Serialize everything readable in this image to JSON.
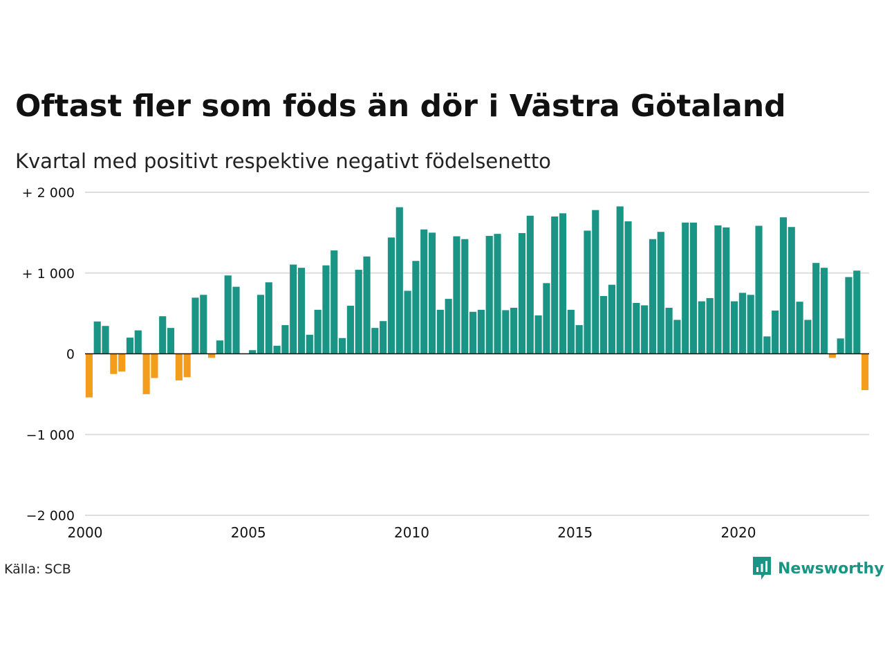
{
  "title": "Oftast fler som föds än dör i Västra Götaland",
  "subtitle": "Kvartal med positivt respektive negativt födelsenetto",
  "source": "Källa: SCB",
  "brand": {
    "name": "Newsworthy",
    "color": "#1a9484"
  },
  "colors": {
    "positive": "#1a9484",
    "negative": "#f49c1c",
    "grid": "#dddddd",
    "zero": "#111111"
  },
  "chart_data": {
    "type": "bar",
    "title": "Oftast fler som föds än dör i Västra Götaland",
    "subtitle": "Kvartal med positivt respektive negativt födelsenetto",
    "xlabel": "",
    "ylabel": "",
    "ylim": [
      -2000,
      2000
    ],
    "grid": true,
    "y_ticks": [
      {
        "value": 2000,
        "label": "+ 2 000"
      },
      {
        "value": 1000,
        "label": "+ 1 000"
      },
      {
        "value": 0,
        "label": "0"
      },
      {
        "value": -1000,
        "label": "−1 000"
      },
      {
        "value": -2000,
        "label": "−2 000"
      }
    ],
    "x_ticks": [
      {
        "value": 2000,
        "label": "2000"
      },
      {
        "value": 2005,
        "label": "2005"
      },
      {
        "value": 2010,
        "label": "2010"
      },
      {
        "value": 2015,
        "label": "2015"
      },
      {
        "value": 2020,
        "label": "2020"
      }
    ],
    "xlim": [
      2000,
      2024
    ],
    "categories": [
      "2000K1",
      "2000K2",
      "2000K3",
      "2000K4",
      "2001K1",
      "2001K2",
      "2001K3",
      "2001K4",
      "2002K1",
      "2002K2",
      "2002K3",
      "2002K4",
      "2003K1",
      "2003K2",
      "2003K3",
      "2003K4",
      "2004K1",
      "2004K2",
      "2004K3",
      "2004K4",
      "2005K1",
      "2005K2",
      "2005K3",
      "2005K4",
      "2006K1",
      "2006K2",
      "2006K3",
      "2006K4",
      "2007K1",
      "2007K2",
      "2007K3",
      "2007K4",
      "2008K1",
      "2008K2",
      "2008K3",
      "2008K4",
      "2009K1",
      "2009K2",
      "2009K3",
      "2009K4",
      "2010K1",
      "2010K2",
      "2010K3",
      "2010K4",
      "2011K1",
      "2011K2",
      "2011K3",
      "2011K4",
      "2012K1",
      "2012K2",
      "2012K3",
      "2012K4",
      "2013K1",
      "2013K2",
      "2013K3",
      "2013K4",
      "2014K1",
      "2014K2",
      "2014K3",
      "2014K4",
      "2015K1",
      "2015K2",
      "2015K3",
      "2015K4",
      "2016K1",
      "2016K2",
      "2016K3",
      "2016K4",
      "2017K1",
      "2017K2",
      "2017K3",
      "2017K4",
      "2018K1",
      "2018K2",
      "2018K3",
      "2018K4",
      "2019K1",
      "2019K2",
      "2019K3",
      "2019K4",
      "2020K1",
      "2020K2",
      "2020K3",
      "2020K4",
      "2021K1",
      "2021K2",
      "2021K3",
      "2021K4",
      "2022K1",
      "2022K2",
      "2022K3",
      "2022K4",
      "2023K1",
      "2023K2",
      "2023K3",
      "2023K4"
    ],
    "values": [
      -540,
      400,
      345,
      -250,
      -220,
      200,
      290,
      -500,
      -300,
      465,
      320,
      -330,
      -290,
      695,
      730,
      -50,
      165,
      970,
      830,
      0,
      45,
      730,
      885,
      100,
      355,
      1105,
      1065,
      235,
      545,
      1095,
      1280,
      195,
      595,
      1040,
      1205,
      320,
      405,
      1440,
      1815,
      780,
      1150,
      1540,
      1500,
      545,
      680,
      1455,
      1420,
      520,
      545,
      1460,
      1485,
      540,
      570,
      1495,
      1710,
      475,
      875,
      1700,
      1740,
      545,
      355,
      1525,
      1780,
      715,
      855,
      1825,
      1640,
      630,
      600,
      1420,
      1510,
      570,
      420,
      1625,
      1625,
      650,
      690,
      1590,
      1565,
      650,
      755,
      730,
      1585,
      215,
      535,
      1690,
      1570,
      645,
      420,
      1125,
      1065,
      -50,
      190,
      950,
      1030,
      -450
    ]
  }
}
